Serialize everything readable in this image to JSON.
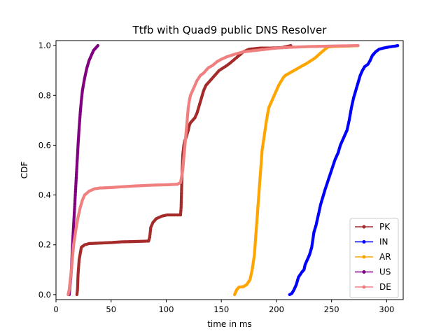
{
  "chart_data": {
    "type": "line",
    "title": "Ttfb with Quad9 public DNS Resolver",
    "xlabel": "time in ms",
    "ylabel": "CDF",
    "xlim": [
      0,
      315
    ],
    "ylim": [
      -0.02,
      1.02
    ],
    "xticks": [
      0,
      50,
      100,
      150,
      200,
      250,
      300
    ],
    "yticks": [
      0.0,
      0.2,
      0.4,
      0.6,
      0.8,
      1.0
    ],
    "xtick_labels": [
      "0",
      "50",
      "100",
      "150",
      "200",
      "250",
      "300"
    ],
    "ytick_labels": [
      "0.0",
      "0.2",
      "0.4",
      "0.6",
      "0.8",
      "1.0"
    ],
    "grid": false,
    "legend_position": "lower-right",
    "series": [
      {
        "name": "PK",
        "color": "#a52a2a",
        "points": [
          [
            19,
            0
          ],
          [
            19.5,
            0.02
          ],
          [
            20,
            0.08
          ],
          [
            21,
            0.14
          ],
          [
            23,
            0.19
          ],
          [
            26,
            0.2
          ],
          [
            30,
            0.205
          ],
          [
            40,
            0.207
          ],
          [
            50,
            0.209
          ],
          [
            60,
            0.212
          ],
          [
            70,
            0.213
          ],
          [
            84,
            0.215
          ],
          [
            85,
            0.23
          ],
          [
            86,
            0.27
          ],
          [
            88,
            0.29
          ],
          [
            91,
            0.305
          ],
          [
            96,
            0.315
          ],
          [
            101,
            0.32
          ],
          [
            113,
            0.32
          ],
          [
            113.5,
            0.35
          ],
          [
            114,
            0.43
          ],
          [
            114.5,
            0.5
          ],
          [
            115,
            0.56
          ],
          [
            116,
            0.6
          ],
          [
            117,
            0.62
          ],
          [
            118,
            0.63
          ],
          [
            119,
            0.645
          ],
          [
            120,
            0.66
          ],
          [
            121,
            0.68
          ],
          [
            122,
            0.69
          ],
          [
            124,
            0.7
          ],
          [
            126,
            0.71
          ],
          [
            128,
            0.73
          ],
          [
            130,
            0.76
          ],
          [
            132,
            0.79
          ],
          [
            134,
            0.82
          ],
          [
            136,
            0.84
          ],
          [
            138,
            0.85
          ],
          [
            142,
            0.87
          ],
          [
            148,
            0.9
          ],
          [
            155,
            0.92
          ],
          [
            158,
            0.93
          ],
          [
            162,
            0.945
          ],
          [
            166,
            0.96
          ],
          [
            170,
            0.975
          ],
          [
            175,
            0.985
          ],
          [
            185,
            0.99
          ],
          [
            195,
            0.99
          ],
          [
            205,
            0.992
          ],
          [
            213,
            1.0
          ]
        ]
      },
      {
        "name": "IN",
        "color": "#0000ff",
        "points": [
          [
            212,
            0
          ],
          [
            214,
            0.005
          ],
          [
            216,
            0.02
          ],
          [
            218,
            0.04
          ],
          [
            220,
            0.07
          ],
          [
            223,
            0.09
          ],
          [
            225,
            0.1
          ],
          [
            226,
            0.12
          ],
          [
            228,
            0.14
          ],
          [
            230,
            0.16
          ],
          [
            232,
            0.19
          ],
          [
            233,
            0.22
          ],
          [
            234,
            0.25
          ],
          [
            236,
            0.28
          ],
          [
            238,
            0.32
          ],
          [
            240,
            0.36
          ],
          [
            242,
            0.39
          ],
          [
            244,
            0.42
          ],
          [
            247,
            0.46
          ],
          [
            250,
            0.5
          ],
          [
            253,
            0.54
          ],
          [
            256,
            0.57
          ],
          [
            258,
            0.6
          ],
          [
            260,
            0.62
          ],
          [
            262,
            0.64
          ],
          [
            264,
            0.66
          ],
          [
            266,
            0.7
          ],
          [
            268,
            0.75
          ],
          [
            270,
            0.79
          ],
          [
            272,
            0.82
          ],
          [
            274,
            0.85
          ],
          [
            276,
            0.88
          ],
          [
            278,
            0.9
          ],
          [
            280,
            0.915
          ],
          [
            283,
            0.925
          ],
          [
            285,
            0.94
          ],
          [
            287,
            0.96
          ],
          [
            290,
            0.975
          ],
          [
            293,
            0.985
          ],
          [
            297,
            0.99
          ],
          [
            303,
            0.995
          ],
          [
            308,
            0.998
          ],
          [
            310,
            1.0
          ]
        ]
      },
      {
        "name": "AR",
        "color": "#ffa500",
        "points": [
          [
            162,
            0
          ],
          [
            163,
            0.01
          ],
          [
            164,
            0.02
          ],
          [
            166,
            0.03
          ],
          [
            170,
            0.032
          ],
          [
            173,
            0.04
          ],
          [
            176,
            0.06
          ],
          [
            178,
            0.1
          ],
          [
            180,
            0.16
          ],
          [
            181,
            0.22
          ],
          [
            182,
            0.28
          ],
          [
            183,
            0.34
          ],
          [
            184,
            0.4
          ],
          [
            185,
            0.46
          ],
          [
            186,
            0.52
          ],
          [
            187,
            0.58
          ],
          [
            189,
            0.64
          ],
          [
            191,
            0.7
          ],
          [
            193,
            0.75
          ],
          [
            196,
            0.78
          ],
          [
            198,
            0.8
          ],
          [
            200,
            0.82
          ],
          [
            202,
            0.84
          ],
          [
            204,
            0.855
          ],
          [
            206,
            0.87
          ],
          [
            208,
            0.88
          ],
          [
            212,
            0.89
          ],
          [
            220,
            0.91
          ],
          [
            228,
            0.93
          ],
          [
            235,
            0.95
          ],
          [
            240,
            0.97
          ],
          [
            244,
            0.985
          ],
          [
            247,
            0.995
          ],
          [
            255,
            0.997
          ],
          [
            265,
            0.998
          ],
          [
            274,
            1.0
          ]
        ]
      },
      {
        "name": "US",
        "color": "#800080",
        "points": [
          [
            12,
            0
          ],
          [
            13,
            0.05
          ],
          [
            14,
            0.1
          ],
          [
            15,
            0.2
          ],
          [
            16,
            0.28
          ],
          [
            17,
            0.36
          ],
          [
            18,
            0.44
          ],
          [
            19,
            0.52
          ],
          [
            20,
            0.6
          ],
          [
            21,
            0.67
          ],
          [
            22,
            0.73
          ],
          [
            23,
            0.78
          ],
          [
            24,
            0.82
          ],
          [
            26,
            0.87
          ],
          [
            28,
            0.91
          ],
          [
            30,
            0.94
          ],
          [
            32,
            0.96
          ],
          [
            34,
            0.98
          ],
          [
            36,
            0.99
          ],
          [
            38,
            1.0
          ]
        ]
      },
      {
        "name": "DE",
        "color": "#f08080",
        "points": [
          [
            11,
            0
          ],
          [
            12,
            0.02
          ],
          [
            13,
            0.06
          ],
          [
            14,
            0.1
          ],
          [
            15,
            0.15
          ],
          [
            16,
            0.2
          ],
          [
            18,
            0.26
          ],
          [
            20,
            0.31
          ],
          [
            22,
            0.35
          ],
          [
            24,
            0.38
          ],
          [
            26,
            0.4
          ],
          [
            30,
            0.415
          ],
          [
            35,
            0.425
          ],
          [
            40,
            0.428
          ],
          [
            50,
            0.43
          ],
          [
            60,
            0.433
          ],
          [
            70,
            0.436
          ],
          [
            80,
            0.438
          ],
          [
            90,
            0.44
          ],
          [
            100,
            0.441
          ],
          [
            110,
            0.443
          ],
          [
            113,
            0.45
          ],
          [
            115,
            0.5
          ],
          [
            116,
            0.55
          ],
          [
            117,
            0.6
          ],
          [
            118,
            0.65
          ],
          [
            119,
            0.7
          ],
          [
            120,
            0.75
          ],
          [
            121,
            0.78
          ],
          [
            122,
            0.8
          ],
          [
            124,
            0.82
          ],
          [
            126,
            0.84
          ],
          [
            128,
            0.86
          ],
          [
            131,
            0.88
          ],
          [
            134,
            0.89
          ],
          [
            138,
            0.91
          ],
          [
            142,
            0.92
          ],
          [
            146,
            0.935
          ],
          [
            150,
            0.945
          ],
          [
            155,
            0.955
          ],
          [
            162,
            0.965
          ],
          [
            170,
            0.975
          ],
          [
            180,
            0.98
          ],
          [
            190,
            0.985
          ],
          [
            200,
            0.99
          ],
          [
            212,
            0.993
          ],
          [
            230,
            0.996
          ],
          [
            250,
            0.998
          ],
          [
            274,
            1.0
          ]
        ]
      }
    ]
  }
}
